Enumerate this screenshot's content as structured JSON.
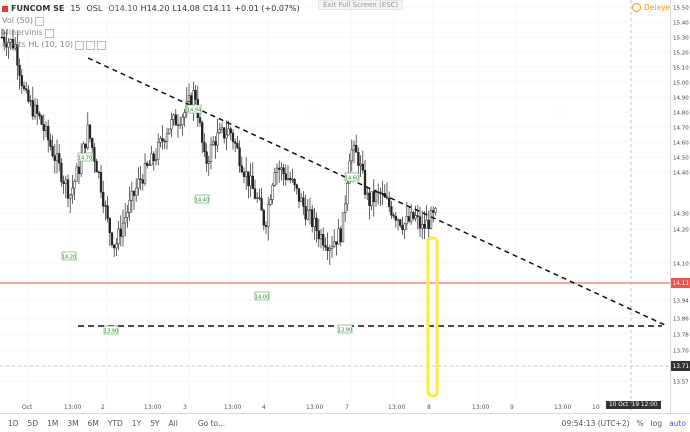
{
  "legend": {
    "symbol": "FUNCOM SE",
    "interval": "15",
    "exchange": "OSL",
    "open": "O14.10",
    "high": "H14.20",
    "low": "L14.08",
    "close": "C14.11",
    "change": "+0.01 (+0.07%)",
    "vol": "Vol (50)",
    "indicator2": "Minervinis",
    "indicator3": "Pivots HL (10, 10)"
  },
  "exit_fullscreen": "Exit Full Screen (ESC)",
  "delayed": "Delayed",
  "price_axis": [
    "15.50",
    "15.40",
    "15.30",
    "15.20",
    "15.10",
    "15.00",
    "14.90",
    "14.80",
    "14.70",
    "14.60",
    "14.50",
    "14.40",
    "14.30",
    "14.20",
    "14.10",
    "14.02",
    "13.94",
    "13.86",
    "13.78",
    "13.70",
    "13.64",
    "13.57"
  ],
  "price_current": "14.11",
  "price_marker_2": "13.71",
  "time_axis": [
    "Oct",
    "13:00",
    "2",
    "13:00",
    "3",
    "13:00",
    "4",
    "13:00",
    "7",
    "13:00",
    "8",
    "13:00",
    "9",
    "13:00",
    "10"
  ],
  "time_crosshair": "10 Oct '19   12:00",
  "pivot_labels": [
    "14.70",
    "14.20",
    "13.90",
    "14.94",
    "14.40",
    "14.00",
    "14.60",
    "13.90",
    "13.90"
  ],
  "bottom": {
    "timeframes": [
      "1D",
      "5D",
      "1M",
      "3M",
      "6M",
      "YTD",
      "1Y",
      "5Y",
      "All"
    ],
    "goto": "Go to...",
    "clock": "09:54:13 (UTC+2)",
    "pct": "%",
    "log": "log",
    "auto": "auto"
  },
  "colors": {
    "current_price_line": "#ef5350",
    "highlight": "#ffeb3b",
    "pivot_label": "#4caf50"
  },
  "chart_data": {
    "type": "candlestick",
    "title": "FUNCOM SE, 15, OSL",
    "ylim": [
      13.57,
      15.5
    ],
    "grid": true,
    "annotations": {
      "descending_trendline": {
        "from": 14.94,
        "to": 13.86
      },
      "support_line": 13.86
    }
  }
}
